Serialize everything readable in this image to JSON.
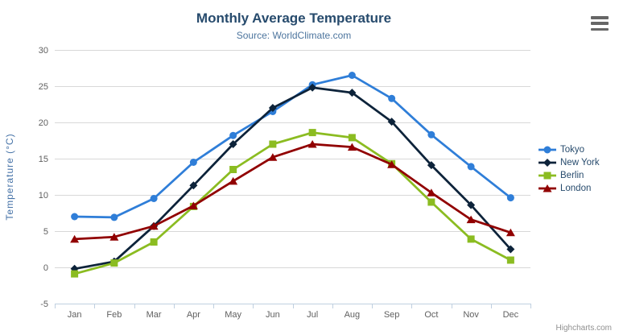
{
  "chart_data": {
    "type": "line",
    "title": "Monthly Average Temperature",
    "subtitle": "Source: WorldClimate.com",
    "categories": [
      "Jan",
      "Feb",
      "Mar",
      "Apr",
      "May",
      "Jun",
      "Jul",
      "Aug",
      "Sep",
      "Oct",
      "Nov",
      "Dec"
    ],
    "xlabel": "",
    "ylabel": "Temperature (°C)",
    "ylim": [
      -5,
      30
    ],
    "ytick_interval": 5,
    "yticks": [
      -5,
      0,
      5,
      10,
      15,
      20,
      25,
      30
    ],
    "grid": true,
    "legend_position": "right",
    "series": [
      {
        "name": "Tokyo",
        "color": "#2f7ed8",
        "marker": "circle",
        "values": [
          7.0,
          6.9,
          9.5,
          14.5,
          18.2,
          21.5,
          25.2,
          26.5,
          23.3,
          18.3,
          13.9,
          9.6
        ]
      },
      {
        "name": "New York",
        "color": "#0d233a",
        "marker": "diamond",
        "values": [
          -0.2,
          0.8,
          5.7,
          11.3,
          17.0,
          22.0,
          24.8,
          24.1,
          20.1,
          14.1,
          8.6,
          2.5
        ]
      },
      {
        "name": "Berlin",
        "color": "#8bbc21",
        "marker": "square",
        "values": [
          -0.9,
          0.6,
          3.5,
          8.4,
          13.5,
          17.0,
          18.6,
          17.9,
          14.3,
          9.0,
          3.9,
          1.0
        ]
      },
      {
        "name": "London",
        "color": "#910000",
        "marker": "triangle",
        "values": [
          3.9,
          4.2,
          5.7,
          8.5,
          11.9,
          15.2,
          17.0,
          16.6,
          14.2,
          10.3,
          6.6,
          4.8
        ]
      }
    ]
  },
  "credits": "Highcharts.com",
  "icons": {
    "menu": "hamburger-menu-icon"
  },
  "colors": {
    "title": "#274b6d",
    "subtitle": "#4d759e",
    "axis_title": "#4572a7",
    "tick_label": "#606060",
    "gridline": "#d8d8d8",
    "axis_line": "#c0d0e0",
    "legend_text": "#274b6d",
    "credits_text": "#909090",
    "menu_icon": "#666666",
    "background": "#ffffff"
  }
}
